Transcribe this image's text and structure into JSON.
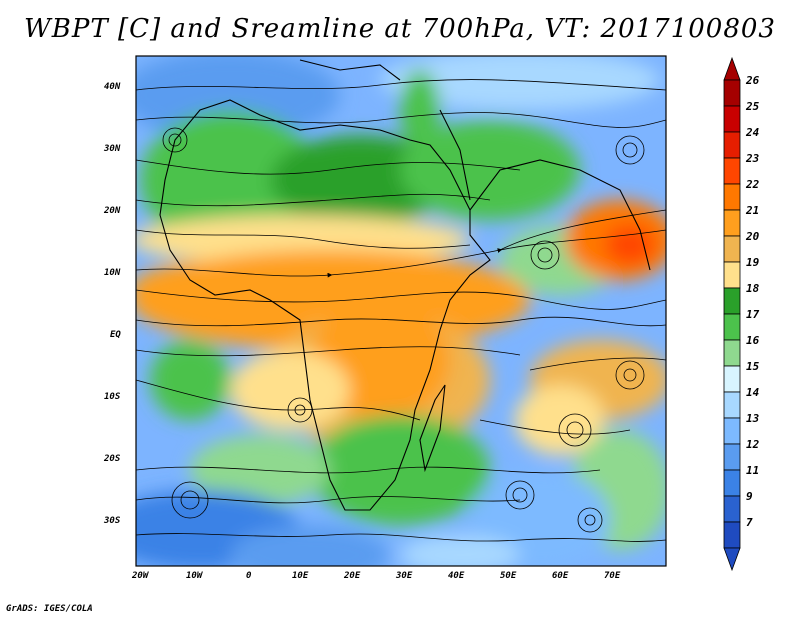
{
  "title": "WBPT [C] and Sreamline at 700hPa, VT: 2017100803",
  "credit": "GrADS: IGES/COLA",
  "map": {
    "lon_ticks": [
      "20W",
      "10W",
      "0",
      "10E",
      "20E",
      "30E",
      "40E",
      "50E",
      "60E",
      "70E"
    ],
    "lat_ticks": [
      "40N",
      "30N",
      "20N",
      "10N",
      "EQ",
      "10S",
      "20S",
      "30S"
    ]
  },
  "colorbar": {
    "labels": [
      "26",
      "25",
      "24",
      "23",
      "22",
      "21",
      "20",
      "19",
      "18",
      "17",
      "16",
      "15",
      "14",
      "13",
      "12",
      "11",
      "9",
      "7"
    ],
    "colors": [
      "#a50000",
      "#c80000",
      "#e61e00",
      "#ff4600",
      "#ff7800",
      "#ff9f1e",
      "#f0b450",
      "#ffe08c",
      "#2aa02a",
      "#4cc24c",
      "#8fd98f",
      "#d8f5ff",
      "#a8d8ff",
      "#7dbaff",
      "#5a9cf0",
      "#3b82e6",
      "#2a62d0",
      "#1f4bc0"
    ]
  }
}
